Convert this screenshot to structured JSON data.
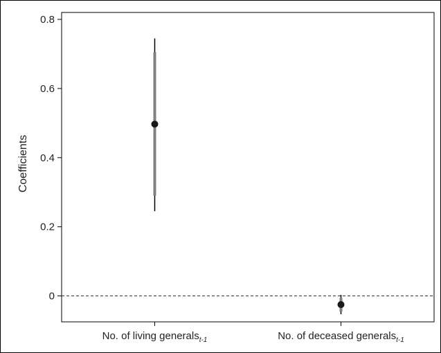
{
  "chart_data": {
    "type": "coefficient-plot",
    "ylabel": "Coefficients",
    "ylim": [
      -0.075,
      0.82
    ],
    "y_ticks": [
      0,
      0.2,
      0.4,
      0.6,
      0.8
    ],
    "y_tick_labels": [
      "0",
      "0.2",
      "0.4",
      "0.6",
      "0.8"
    ],
    "reference_line": 0,
    "grid": false,
    "categories": [
      {
        "label": "No. of living generals",
        "subscript": "t-1"
      },
      {
        "label": "No. of deceased generals",
        "subscript": "t-1"
      }
    ],
    "estimates": [
      0.497,
      -0.025
    ],
    "ci_outer": [
      [
        0.245,
        0.745
      ],
      [
        -0.053,
        0.003
      ]
    ],
    "ci_inner": [
      [
        0.29,
        0.705
      ],
      [
        -0.045,
        -0.005
      ]
    ],
    "colors": {
      "outer": "#000000",
      "inner": "#808080",
      "point": "#1a1a1a",
      "reference": "#333333"
    }
  }
}
